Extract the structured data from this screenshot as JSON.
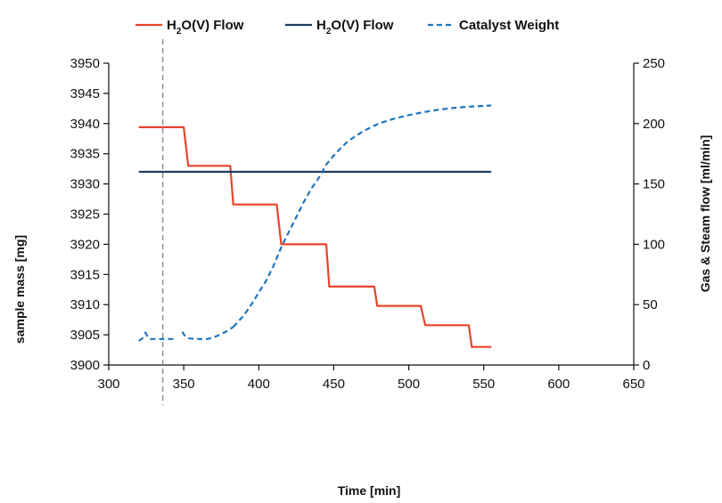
{
  "chart_data": {
    "type": "line",
    "xlabel": "Time [min]",
    "ylabel_left": "sample mass [mg]",
    "ylabel_right": "Gas & Steam flow [ml/min]",
    "xlim": [
      300,
      650
    ],
    "ylim_left": [
      3900,
      3950
    ],
    "ylim_right": [
      0,
      250
    ],
    "x_ticks": [
      "300",
      "350",
      "400",
      "450",
      "500",
      "550",
      "600",
      "650"
    ],
    "y_left_ticks": [
      "3900",
      "3905",
      "3910",
      "3915",
      "3920",
      "3925",
      "3930",
      "3935",
      "3940",
      "3945",
      "3950"
    ],
    "y_right_ticks": [
      "0",
      "50",
      "100",
      "150",
      "200",
      "250"
    ],
    "grid": false,
    "legend_position": "top",
    "reference_line_x": 336,
    "series": [
      {
        "name": "H2O(V) Flow",
        "name_main": "H",
        "name_sub": "2",
        "name_rest": "O(V) Flow",
        "color": "#e8442c",
        "style": "solid",
        "axis": "right",
        "points": [
          [
            320,
            197
          ],
          [
            350,
            197
          ],
          [
            353,
            165
          ],
          [
            381,
            165
          ],
          [
            383,
            133
          ],
          [
            412,
            133
          ],
          [
            415,
            100
          ],
          [
            445,
            100
          ],
          [
            447,
            65
          ],
          [
            477,
            65
          ],
          [
            479,
            49
          ],
          [
            508,
            49
          ],
          [
            511,
            33
          ],
          [
            540,
            33
          ],
          [
            542,
            15
          ],
          [
            555,
            15
          ]
        ]
      },
      {
        "name": "H2O(V) Flow",
        "name_main": "H",
        "name_sub": "2",
        "name_rest": "O(V) Flow",
        "color": "#1f3b63",
        "style": "solid",
        "axis": "right",
        "points": [
          [
            320,
            160
          ],
          [
            555,
            160
          ]
        ]
      },
      {
        "name": "Catalyst Weight",
        "color": "#1f74c0",
        "style": "dashed",
        "axis": "left",
        "segments": [
          [
            [
              320,
              3904.0
            ],
            [
              323,
              3904.5
            ],
            [
              325,
              3904.5
            ]
          ],
          [
            [
              324,
              3905.5
            ],
            [
              326,
              3904.7
            ],
            [
              328,
              3904.3
            ],
            [
              335,
              3904.3
            ],
            [
              342,
              3904.3
            ],
            [
              345,
              3904.3
            ]
          ],
          [
            [
              349,
              3905.5
            ],
            [
              351,
              3904.7
            ],
            [
              354,
              3904.4
            ],
            [
              360,
              3904.3
            ],
            [
              366,
              3904.3
            ],
            [
              372,
              3904.8
            ],
            [
              378,
              3905.5
            ],
            [
              383,
              3906.3
            ]
          ],
          [
            [
              383,
              3906.3
            ],
            [
              390,
              3908.2
            ],
            [
              395,
              3910.0
            ],
            [
              400,
              3912.0
            ],
            [
              405,
              3914.0
            ],
            [
              410,
              3916.5
            ],
            [
              415,
              3919.5
            ],
            [
              420,
              3922.0
            ],
            [
              425,
              3924.5
            ],
            [
              430,
              3927.0
            ],
            [
              435,
              3929.2
            ],
            [
              440,
              3931.0
            ],
            [
              445,
              3933.2
            ],
            [
              450,
              3934.7
            ],
            [
              455,
              3936.0
            ],
            [
              460,
              3937.2
            ],
            [
              465,
              3938.0
            ],
            [
              470,
              3938.8
            ],
            [
              480,
              3940.0
            ],
            [
              490,
              3940.8
            ],
            [
              500,
              3941.4
            ],
            [
              510,
              3941.9
            ],
            [
              520,
              3942.3
            ],
            [
              530,
              3942.6
            ],
            [
              540,
              3942.8
            ],
            [
              555,
              3943.0
            ]
          ]
        ]
      }
    ]
  }
}
